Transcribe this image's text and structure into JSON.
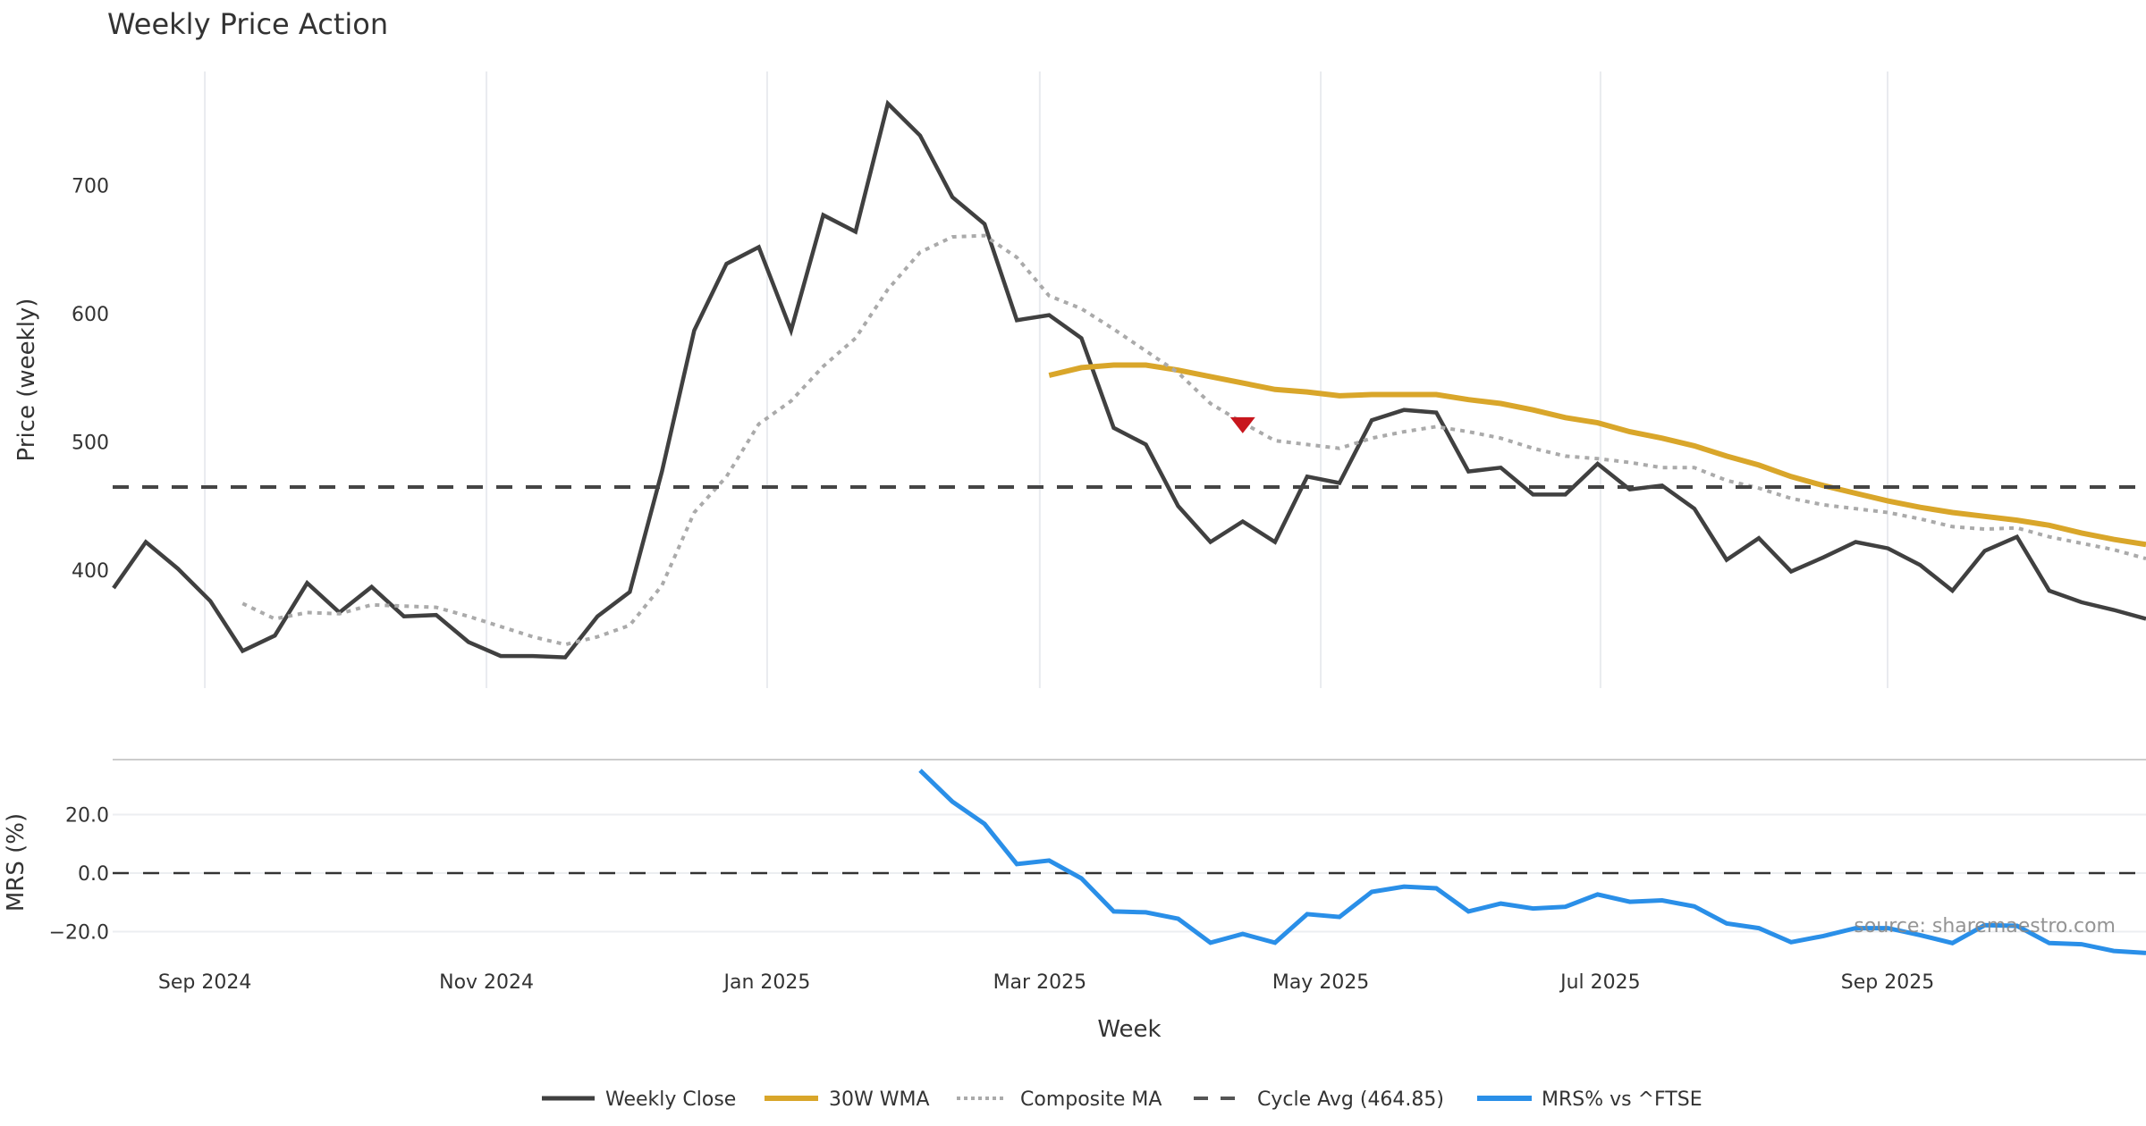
{
  "chart_data": [
    {
      "type": "line",
      "title": "Weekly Price Action",
      "xlabel": "Week",
      "ylabel": "Price (weekly)",
      "x_unit": "week index",
      "xlim": [
        0,
        63
      ],
      "ylim": [
        308,
        789
      ],
      "grid": true,
      "x_ticks": [
        {
          "label": "Sep 2024",
          "value": 2.83
        },
        {
          "label": "Nov 2024",
          "value": 11.56
        },
        {
          "label": "Jan 2025",
          "value": 20.26
        },
        {
          "label": "Mar 2025",
          "value": 28.71
        },
        {
          "label": "May 2025",
          "value": 37.42
        },
        {
          "label": "Jul 2025",
          "value": 46.09
        },
        {
          "label": "Sep 2025",
          "value": 54.99
        }
      ],
      "y_ticks": [
        {
          "label": "400",
          "value": 400
        },
        {
          "label": "500",
          "value": 500
        },
        {
          "label": "600",
          "value": 600
        },
        {
          "label": "700",
          "value": 700
        }
      ],
      "series": [
        {
          "name": "Weekly Close",
          "color": "#404040",
          "style": "solid",
          "start": 0,
          "values": [
            386,
            422,
            401,
            376,
            337,
            349,
            390,
            367,
            387,
            364,
            365,
            344,
            333,
            333,
            332,
            364,
            383,
            477,
            587,
            639,
            652,
            587,
            677,
            664,
            764,
            739,
            691,
            670,
            595,
            599,
            581,
            511,
            498,
            450,
            422,
            438,
            422,
            473,
            468,
            517,
            525,
            523,
            477,
            480,
            459,
            459,
            483,
            463,
            466,
            448,
            408,
            425,
            399,
            410,
            422,
            417,
            404,
            384,
            415,
            426,
            384,
            375,
            369,
            362
          ]
        },
        {
          "name": "30W WMA",
          "color": "#D9A62A",
          "style": "solid",
          "start": 29,
          "values": [
            552,
            558,
            560,
            560,
            556,
            551,
            546,
            541,
            539,
            536,
            537,
            537,
            537,
            533,
            530,
            525,
            519,
            515,
            508,
            503,
            497,
            489,
            482,
            473,
            466,
            460,
            454,
            449,
            445,
            442,
            439,
            435,
            429,
            424,
            420
          ]
        },
        {
          "name": "Composite MA",
          "color": "#AAAAAA",
          "style": "dotted",
          "start": 4,
          "values": [
            374,
            362,
            367,
            366,
            373,
            372,
            371,
            364,
            356,
            348,
            342,
            348,
            357,
            388,
            445,
            473,
            514,
            532,
            559,
            581,
            619,
            648,
            660,
            661,
            644,
            614,
            604,
            588,
            571,
            554,
            530,
            515,
            501,
            498,
            495,
            503,
            508,
            512,
            508,
            503,
            495,
            489,
            487,
            484,
            480,
            480,
            470,
            464,
            456,
            451,
            448,
            445,
            440,
            434,
            432,
            433,
            426,
            421,
            416,
            409
          ]
        },
        {
          "name": "Cycle Avg (464.85)",
          "color": "#444444",
          "style": "dashed",
          "constant": 464.85
        }
      ],
      "markers": [
        {
          "type": "triangle-down",
          "color": "#C8161D",
          "x": 35,
          "y": 513
        }
      ]
    },
    {
      "type": "line",
      "title": "",
      "xlabel": "Week",
      "ylabel": "MRS (%)",
      "xlim": [
        0,
        63
      ],
      "ylim": [
        -28.4,
        38.8
      ],
      "grid": true,
      "y_ticks": [
        {
          "label": "−20.0",
          "value": -20
        },
        {
          "label": "0.0",
          "value": 0
        },
        {
          "label": "20.0",
          "value": 20
        }
      ],
      "reference_line": {
        "value": 0,
        "style": "dashed",
        "color": "#333333"
      },
      "series": [
        {
          "name": "MRS% vs ^FTSE",
          "color": "#2A8FE8",
          "style": "solid",
          "start": 25,
          "values": [
            35.1,
            24.4,
            16.8,
            3.1,
            4.3,
            -1.8,
            -13.1,
            -13.4,
            -15.6,
            -23.8,
            -20.8,
            -23.8,
            -14.0,
            -15.0,
            -6.4,
            -4.6,
            -5.2,
            -13.1,
            -10.4,
            -12.1,
            -11.5,
            -7.3,
            -9.8,
            -9.3,
            -11.4,
            -17.2,
            -18.8,
            -23.6,
            -21.5,
            -18.8,
            -18.8,
            -21.2,
            -23.9,
            -17.8,
            -18.0,
            -23.9,
            -24.3,
            -26.6,
            -27.3
          ]
        }
      ]
    }
  ],
  "legend": {
    "placement": "bottom-center",
    "items": [
      {
        "label": "Weekly Close",
        "color": "#404040",
        "style": "solid"
      },
      {
        "label": "30W WMA",
        "color": "#D9A62A",
        "style": "solid"
      },
      {
        "label": "Composite MA",
        "color": "#AAAAAA",
        "style": "dotted"
      },
      {
        "label": "Cycle Avg (464.85)",
        "color": "#555555",
        "style": "dashed"
      },
      {
        "label": "MRS% vs ^FTSE",
        "color": "#2A8FE8",
        "style": "solid"
      }
    ]
  },
  "source": "source: sharemaestro.com"
}
